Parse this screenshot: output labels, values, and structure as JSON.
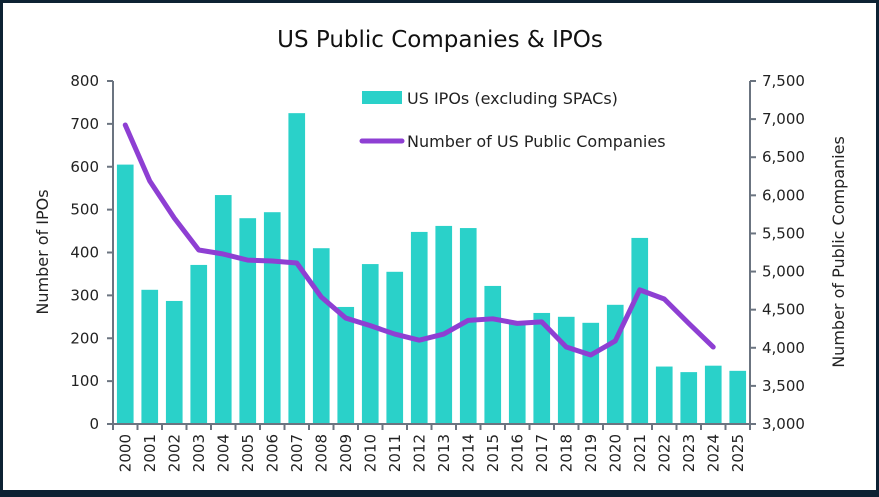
{
  "chart_data": {
    "type": "bar+line",
    "title": "US Public Companies & IPOs",
    "categories": [
      "2000",
      "2001",
      "2002",
      "2003",
      "2004",
      "2005",
      "2006",
      "2007",
      "2008",
      "2009",
      "2010",
      "2011",
      "2012",
      "2013",
      "2014",
      "2015",
      "2016",
      "2017",
      "2018",
      "2019",
      "2020",
      "2021",
      "2022",
      "2023",
      "2024",
      "2025"
    ],
    "series": [
      {
        "name": "US IPOs (excluding SPACs)",
        "type": "bar",
        "axis": "left",
        "color": "#2ad1c9",
        "values": [
          605,
          313,
          287,
          371,
          534,
          480,
          494,
          725,
          410,
          273,
          373,
          355,
          448,
          462,
          457,
          322,
          235,
          259,
          250,
          236,
          278,
          434,
          134,
          121,
          136,
          124
        ]
      },
      {
        "name": "Number of US Public Companies",
        "type": "line",
        "axis": "right",
        "color": "#8e3fd3",
        "values": [
          6923,
          6188,
          5703,
          5283,
          5230,
          5150,
          5138,
          5112,
          4666,
          4390,
          4290,
          4180,
          4100,
          4180,
          4360,
          4380,
          4320,
          4340,
          4010,
          3905,
          4090,
          4760,
          4640,
          4320,
          4010,
          null
        ]
      }
    ],
    "ylabel": "Number of IPOs",
    "ylabel_right": "Number of Public Companies",
    "ylim": [
      0,
      800
    ],
    "yticks": [
      0,
      100,
      200,
      300,
      400,
      500,
      600,
      700,
      800
    ],
    "ytick_labels": [
      "0",
      "100",
      "200",
      "300",
      "400",
      "500",
      "600",
      "700",
      "800"
    ],
    "ylim_right": [
      3000,
      7500
    ],
    "yticks_right": [
      3000,
      3500,
      4000,
      4500,
      5000,
      5500,
      6000,
      6500,
      7000,
      7500
    ],
    "ytick_labels_right": [
      "3,000",
      "3,500",
      "4,000",
      "4,500",
      "5,000",
      "5,500",
      "6,000",
      "6,500",
      "7,000",
      "7,500"
    ],
    "grid": false,
    "legend_position": "top-center"
  }
}
